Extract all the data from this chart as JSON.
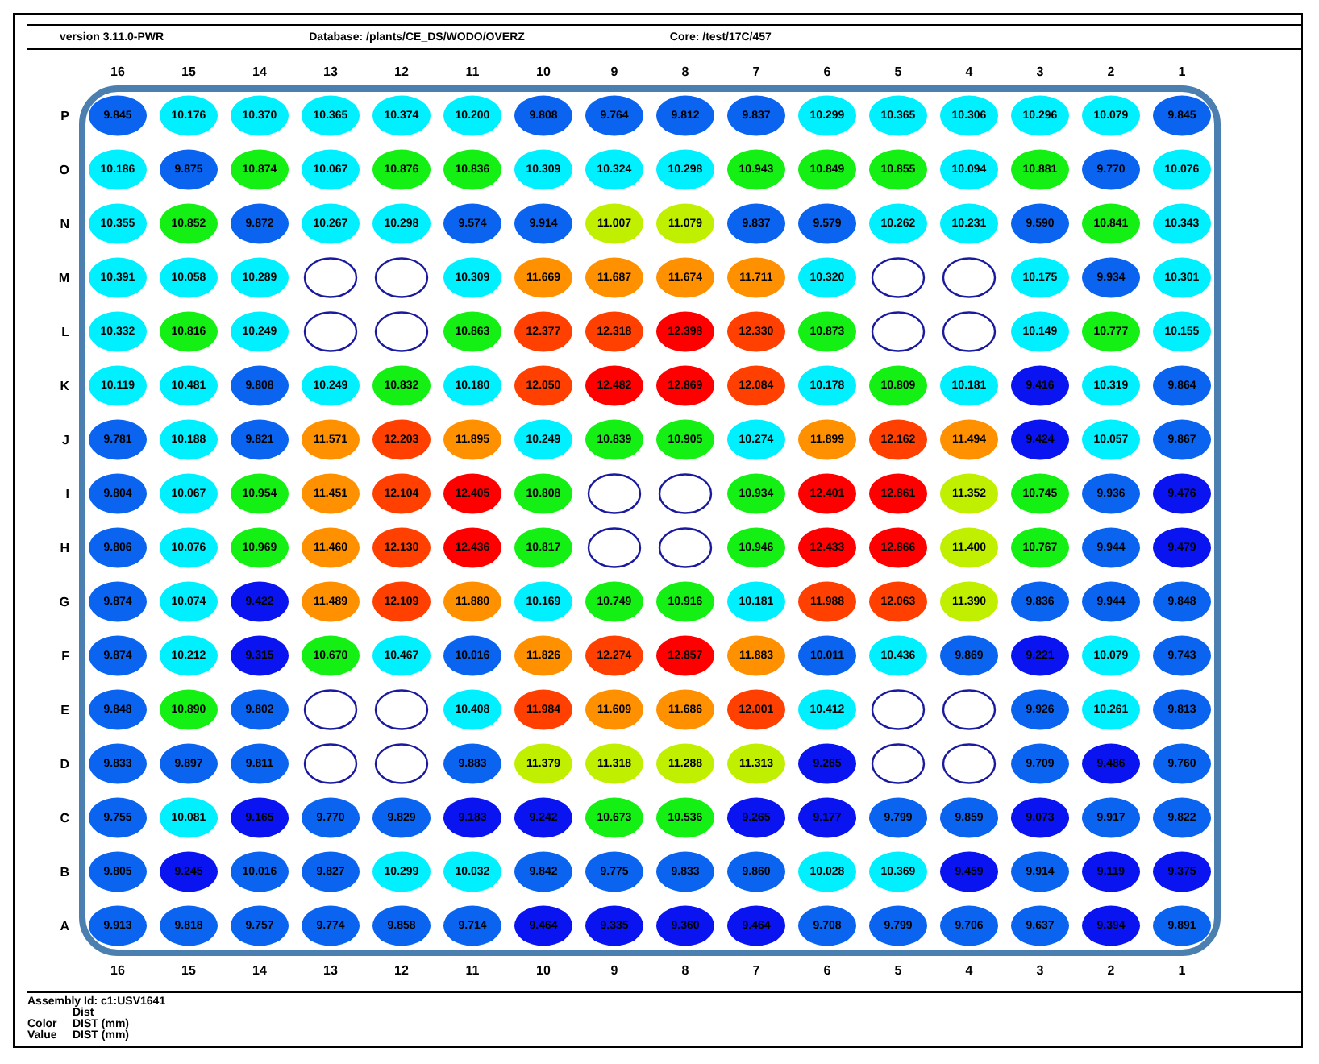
{
  "chart_data": {
    "type": "heatmap",
    "title": "version 3.11.0-PWR",
    "annotations": [
      "Database: /plants/CE_DS/WODO/OVERZ",
      "Core: /test/17C/457",
      "Assembly Id: c1:USV1641",
      "Dist",
      "Color",
      "DIST (mm)",
      "Value",
      "DIST (mm)"
    ],
    "categories": [
      "16",
      "15",
      "14",
      "13",
      "12",
      "11",
      "10",
      "9",
      "8",
      "7",
      "6",
      "5",
      "4",
      "3",
      "2",
      "1"
    ],
    "y_categories": [
      "P",
      "O",
      "N",
      "M",
      "L",
      "K",
      "J",
      "I",
      "H",
      "G",
      "F",
      "E",
      "D",
      "C",
      "B",
      "A"
    ],
    "colors": [
      "#0a14f0",
      "#0a64f0",
      "#00f0ff",
      "#14f014",
      "#c0f000",
      "#ff9000",
      "#ff4000",
      "#ff0000"
    ],
    "cells": [
      [
        9.845,
        10.176,
        10.37,
        10.365,
        10.374,
        10.2,
        9.808,
        9.764,
        9.812,
        9.837,
        10.299,
        10.365,
        10.306,
        10.296,
        10.079,
        9.845
      ],
      [
        10.186,
        9.875,
        10.874,
        10.067,
        10.876,
        10.836,
        10.309,
        10.324,
        10.298,
        10.943,
        10.849,
        10.855,
        10.094,
        10.881,
        9.77,
        10.076
      ],
      [
        10.355,
        10.852,
        9.872,
        10.267,
        10.298,
        9.574,
        9.914,
        11.007,
        11.079,
        9.837,
        9.579,
        10.262,
        10.231,
        9.59,
        10.841,
        10.343
      ],
      [
        10.391,
        10.058,
        10.289,
        null,
        null,
        10.309,
        11.669,
        11.687,
        11.674,
        11.711,
        10.32,
        null,
        null,
        10.175,
        9.934,
        10.301
      ],
      [
        10.332,
        10.816,
        10.249,
        null,
        null,
        10.863,
        12.377,
        12.318,
        12.398,
        12.33,
        10.873,
        null,
        null,
        10.149,
        10.777,
        10.155
      ],
      [
        10.119,
        10.481,
        9.808,
        10.249,
        10.832,
        10.18,
        12.05,
        12.482,
        12.869,
        12.084,
        10.178,
        10.809,
        10.181,
        9.416,
        10.319,
        9.864
      ],
      [
        9.781,
        10.188,
        9.821,
        11.571,
        12.203,
        11.895,
        10.249,
        10.839,
        10.905,
        10.274,
        11.899,
        12.162,
        11.494,
        9.424,
        10.057,
        9.867
      ],
      [
        9.804,
        10.067,
        10.954,
        11.451,
        12.104,
        12.405,
        10.808,
        null,
        null,
        10.934,
        12.401,
        12.861,
        11.352,
        10.745,
        9.936,
        9.476
      ],
      [
        9.806,
        10.076,
        10.969,
        11.46,
        12.13,
        12.436,
        10.817,
        null,
        null,
        10.946,
        12.433,
        12.866,
        11.4,
        10.767,
        9.944,
        9.479
      ],
      [
        9.874,
        10.074,
        9.422,
        11.489,
        12.109,
        11.88,
        10.169,
        10.749,
        10.916,
        10.181,
        11.988,
        12.063,
        11.39,
        9.836,
        9.944,
        9.848
      ],
      [
        9.874,
        10.212,
        9.315,
        10.67,
        10.467,
        10.016,
        11.826,
        12.274,
        12.857,
        11.883,
        10.011,
        10.436,
        9.869,
        9.221,
        10.079,
        9.743
      ],
      [
        9.848,
        10.89,
        9.802,
        null,
        null,
        10.408,
        11.984,
        11.609,
        11.686,
        12.001,
        10.412,
        null,
        null,
        9.926,
        10.261,
        9.813
      ],
      [
        9.833,
        9.897,
        9.811,
        null,
        null,
        9.883,
        11.379,
        11.318,
        11.288,
        11.313,
        9.265,
        null,
        null,
        9.709,
        9.486,
        9.76
      ],
      [
        9.755,
        10.081,
        9.165,
        9.77,
        9.829,
        9.183,
        9.242,
        10.673,
        10.536,
        9.265,
        9.177,
        9.799,
        9.859,
        9.073,
        9.917,
        9.822
      ],
      [
        9.805,
        9.245,
        10.016,
        9.827,
        10.299,
        10.032,
        9.842,
        9.775,
        9.833,
        9.86,
        10.028,
        10.369,
        9.459,
        9.914,
        9.119,
        9.375
      ],
      [
        9.913,
        9.818,
        9.757,
        9.774,
        9.858,
        9.714,
        9.464,
        9.335,
        9.36,
        9.464,
        9.708,
        9.799,
        9.706,
        9.637,
        9.394,
        9.891
      ]
    ],
    "cell_labels": [
      [
        "9.845",
        "10.176",
        "10.370",
        "10.365",
        "10.374",
        "10.200",
        "9.808",
        "9.764",
        "9.812",
        "9.837",
        "10.299",
        "10.365",
        "10.306",
        "10.296",
        "10.079",
        "9.845"
      ],
      [
        "10.186",
        "9.875",
        "10.874",
        "10.067",
        "10.876",
        "10.836",
        "10.309",
        "10.324",
        "10.298",
        "10.943",
        "10.849",
        "10.855",
        "10.094",
        "10.881",
        "9.770",
        "10.076"
      ],
      [
        "10.355",
        "10.852",
        "9.872",
        "10.267",
        "10.298",
        "9.574",
        "9.914",
        "11.007",
        "11.079",
        "9.837",
        "9.579",
        "10.262",
        "10.231",
        "9.590",
        "10.841",
        "10.343"
      ],
      [
        "10.391",
        "10.058",
        "10.289",
        null,
        null,
        "10.309",
        "11.669",
        "11.687",
        "11.674",
        "11.711",
        "10.320",
        null,
        null,
        "10.175",
        "9.934",
        "10.301"
      ],
      [
        "10.332",
        "10.816",
        "10.249",
        null,
        null,
        "10.863",
        "12.377",
        "12.318",
        "12.398",
        "12.330",
        "10.873",
        null,
        null,
        "10.149",
        "10.777",
        "10.155"
      ],
      [
        "10.119",
        "10.481",
        "9.808",
        "10.249",
        "10.832",
        "10.180",
        "12.050",
        "12.482",
        "12.869",
        "12.084",
        "10.178",
        "10.809",
        "10.181",
        "9.416",
        "10.319",
        "9.864"
      ],
      [
        "9.781",
        "10.188",
        "9.821",
        "11.571",
        "12.203",
        "11.895",
        "10.249",
        "10.839",
        "10.905",
        "10.274",
        "11.899",
        "12.162",
        "11.494",
        "9.424",
        "10.057",
        "9.867"
      ],
      [
        "9.804",
        "10.067",
        "10.954",
        "11.451",
        "12.104",
        "12.405",
        "10.808",
        null,
        null,
        "10.934",
        "12.401",
        "12.861",
        "11.352",
        "10.745",
        "9.936",
        "9.476"
      ],
      [
        "9.806",
        "10.076",
        "10.969",
        "11.460",
        "12.130",
        "12.436",
        "10.817",
        null,
        null,
        "10.946",
        "12.433",
        "12.866",
        "11.400",
        "10.767",
        "9.944",
        "9.479"
      ],
      [
        "9.874",
        "10.074",
        "9.422",
        "11.489",
        "12.109",
        "11.880",
        "10.169",
        "10.749",
        "10.916",
        "10.181",
        "11.988",
        "12.063",
        "11.390",
        "9.836",
        "9.944",
        "9.848"
      ],
      [
        "9.874",
        "10.212",
        "9.315",
        "10.670",
        "10.467",
        "10.016",
        "11.826",
        "12.274",
        "12.857",
        "11.883",
        "10.011",
        "10.436",
        "9.869",
        "9.221",
        "10.079",
        "9.743"
      ],
      [
        "9.848",
        "10.890",
        "9.802",
        null,
        null,
        "10.408",
        "11.984",
        "11.609",
        "11.686",
        "12.001",
        "10.412",
        null,
        null,
        "9.926",
        "10.261",
        "9.813"
      ],
      [
        "9.833",
        "9.897",
        "9.811",
        null,
        null,
        "9.883",
        "11.379",
        "11.318",
        "11.288",
        "11.313",
        "9.265",
        null,
        null,
        "9.709",
        "9.486",
        "9.760"
      ],
      [
        "9.755",
        "10.081",
        "9.165",
        "9.770",
        "9.829",
        "9.183",
        "9.242",
        "10.673",
        "10.536",
        "9.265",
        "9.177",
        "9.799",
        "9.859",
        "9.073",
        "9.917",
        "9.822"
      ],
      [
        "9.805",
        "9.245",
        "10.016",
        "9.827",
        "10.299",
        "10.032",
        "9.842",
        "9.775",
        "9.833",
        "9.860",
        "10.028",
        "10.369",
        "9.459",
        "9.914",
        "9.119",
        "9.375"
      ],
      [
        "9.913",
        "9.818",
        "9.757",
        "9.774",
        "9.858",
        "9.714",
        "9.464",
        "9.335",
        "9.360",
        "9.464",
        "9.708",
        "9.799",
        "9.706",
        "9.637",
        "9.394",
        "9.891"
      ]
    ]
  }
}
